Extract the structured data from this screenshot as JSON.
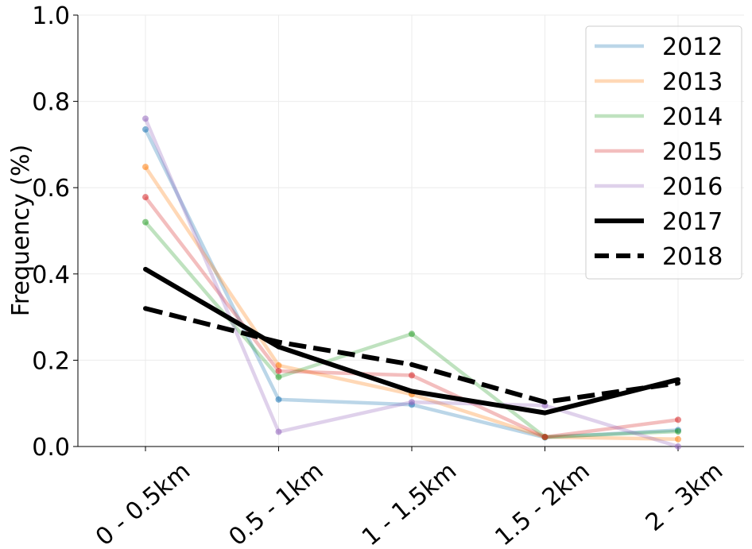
{
  "chart_data": {
    "type": "line",
    "categories": [
      "0 - 0.5km",
      "0.5 - 1km",
      "1 - 1.5km",
      "1.5 - 2km",
      "2 - 3km"
    ],
    "ylabel": "Frequency (%)",
    "xlabel": "",
    "ylim": [
      0.0,
      1.0
    ],
    "yticks": [
      "0.0",
      "0.2",
      "0.4",
      "0.6",
      "0.8",
      "1.0"
    ],
    "grid": true,
    "legend_position": "top-right",
    "series": [
      {
        "name": "2012",
        "color": "#1f77b4",
        "style": "faded",
        "values": [
          0.735,
          0.109,
          0.097,
          0.021,
          0.038
        ]
      },
      {
        "name": "2013",
        "color": "#ff7f0e",
        "style": "faded",
        "values": [
          0.648,
          0.188,
          0.121,
          0.022,
          0.017
        ]
      },
      {
        "name": "2014",
        "color": "#2ca02c",
        "style": "faded",
        "values": [
          0.52,
          0.161,
          0.261,
          0.022,
          0.035
        ]
      },
      {
        "name": "2015",
        "color": "#d62728",
        "style": "faded",
        "values": [
          0.578,
          0.175,
          0.165,
          0.022,
          0.062
        ]
      },
      {
        "name": "2016",
        "color": "#9467bd",
        "style": "faded",
        "values": [
          0.76,
          0.034,
          0.103,
          0.095,
          0.0
        ]
      },
      {
        "name": "2017",
        "color": "#000000",
        "style": "solid",
        "values": [
          0.411,
          0.231,
          0.128,
          0.078,
          0.155
        ]
      },
      {
        "name": "2018",
        "color": "#000000",
        "style": "dashed",
        "values": [
          0.32,
          0.242,
          0.19,
          0.103,
          0.147
        ]
      }
    ]
  }
}
